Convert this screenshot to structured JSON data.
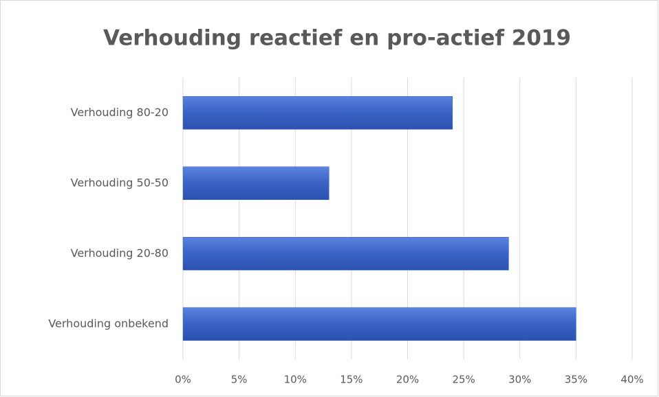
{
  "chart_data": {
    "type": "bar",
    "orientation": "horizontal",
    "title": "Verhouding  reactief en pro-actief  2019",
    "categories": [
      "Verhouding 80-20",
      "Verhouding 50-50",
      "Verhouding 20-80",
      "Verhouding onbekend"
    ],
    "values": [
      24,
      13,
      29,
      35
    ],
    "color": "#3a62c4",
    "xlim": [
      0,
      40
    ],
    "xticks": [
      {
        "value": 0,
        "label": "0%"
      },
      {
        "value": 5,
        "label": "5%"
      },
      {
        "value": 10,
        "label": "10%"
      },
      {
        "value": 15,
        "label": "15%"
      },
      {
        "value": 20,
        "label": "20%"
      },
      {
        "value": 25,
        "label": "25%"
      },
      {
        "value": 30,
        "label": "30%"
      },
      {
        "value": 35,
        "label": "35%"
      },
      {
        "value": 40,
        "label": "40%"
      }
    ],
    "grid": true
  }
}
